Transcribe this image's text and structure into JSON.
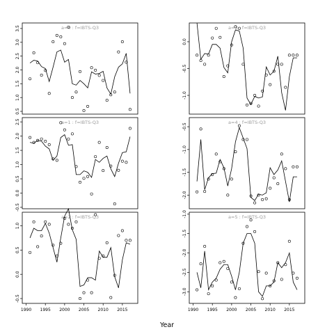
{
  "chart_data": {
    "type": "line",
    "xlabel": "Year",
    "xlim": [
      1989,
      2019
    ],
    "xticks": [
      1990,
      1995,
      2000,
      2005,
      2010,
      2015
    ],
    "panels": [
      {
        "id": "p1",
        "title": "a=0 : f=IBTS-Q3",
        "ylim": [
          0.4,
          3.7
        ],
        "yticks": [
          0.5,
          1.0,
          1.5,
          2.0,
          2.5,
          3.0,
          3.5
        ],
        "points_x": [
          1991,
          1992,
          1993,
          1994,
          1995,
          1996,
          1997,
          1998,
          1999,
          2000,
          2001,
          2002,
          2003,
          2004,
          2005,
          2006,
          2007,
          2008,
          2009,
          2010,
          2011,
          2012,
          2013,
          2014,
          2015,
          2016,
          2017
        ],
        "points_y": [
          1.68,
          2.62,
          2.26,
          1.81,
          1.98,
          1.15,
          3.02,
          3.25,
          3.2,
          2.95,
          3.55,
          1.0,
          1.2,
          1.94,
          0.53,
          0.68,
          2.08,
          1.99,
          1.8,
          1.62,
          0.9,
          1.1,
          1.2,
          2.65,
          3.02,
          2.28,
          0.57
        ],
        "fit_x": [
          1991,
          1992,
          1993,
          1994,
          1995,
          1996,
          1997,
          1998,
          1999,
          2000,
          2001,
          2002,
          2003,
          2004,
          2005,
          2006,
          2007,
          2008,
          2009,
          2010,
          2011,
          2012,
          2013,
          2014,
          2015,
          2016,
          2017
        ],
        "fit_y": [
          2.25,
          2.35,
          2.32,
          2.12,
          2.05,
          1.58,
          2.1,
          2.65,
          2.72,
          2.28,
          2.38,
          1.5,
          1.45,
          1.62,
          1.5,
          1.35,
          1.93,
          1.85,
          1.87,
          1.95,
          1.35,
          1.12,
          1.75,
          2.1,
          2.22,
          2.6,
          1.15
        ]
      },
      {
        "id": "p2",
        "title": "a=3 : f=IBTS-Q3",
        "ylim": [
          -1.35,
          0.35
        ],
        "yticks": [
          -1.0,
          -0.5,
          0.0
        ],
        "points_x": [
          1991,
          1992,
          1993,
          1994,
          1995,
          1996,
          1997,
          1998,
          1999,
          2000,
          2001,
          2002,
          2003,
          2004,
          2005,
          2006,
          2007,
          2008,
          2009,
          2010,
          2011,
          2012,
          2013,
          2014,
          2015,
          2016,
          2017
        ],
        "points_y": [
          -0.25,
          -0.35,
          -0.42,
          -0.25,
          0.07,
          0.25,
          0.08,
          -0.65,
          -0.45,
          -0.06,
          0.28,
          0.25,
          -0.42,
          -1.18,
          -1.15,
          -1.0,
          -1.2,
          -0.92,
          -0.62,
          -0.8,
          -0.55,
          -0.42,
          -0.42,
          -0.85,
          -0.25,
          -0.25,
          -0.25
        ],
        "fit_x": [
          1991,
          1992,
          1993,
          1994,
          1995,
          1996,
          1997,
          1998,
          1999,
          2000,
          2001,
          2002,
          2003,
          2004,
          2005,
          2006,
          2007,
          2008,
          2009,
          2010,
          2011,
          2012,
          2013,
          2014,
          2015,
          2016,
          2017
        ],
        "fit_y": [
          0.35,
          -0.33,
          -0.22,
          -0.23,
          -0.05,
          -0.05,
          -0.12,
          -0.48,
          -0.58,
          0.0,
          0.22,
          0.2,
          -0.12,
          -1.05,
          -1.17,
          -1.02,
          -1.05,
          -1.03,
          -0.47,
          -0.62,
          -0.55,
          -0.27,
          -0.95,
          -1.28,
          -0.65,
          -0.3,
          -0.3
        ]
      },
      {
        "id": "p3",
        "title": "a=1 : f=IBTS-Q3",
        "ylim": [
          -0.55,
          2.65
        ],
        "yticks": [
          -0.5,
          0.0,
          0.5,
          1.0,
          1.5,
          2.0,
          2.5
        ],
        "points_x": [
          1991,
          1992,
          1993,
          1994,
          1995,
          1996,
          1997,
          1998,
          1999,
          2000,
          2001,
          2002,
          2003,
          2004,
          2005,
          2006,
          2007,
          2008,
          2009,
          2010,
          2011,
          2012,
          2013,
          2014,
          2015,
          2016,
          2017
        ],
        "points_y": [
          1.95,
          1.78,
          1.85,
          1.9,
          1.82,
          1.7,
          1.2,
          1.15,
          2.47,
          2.22,
          1.9,
          2.08,
          0.93,
          0.38,
          0.52,
          0.58,
          -0.03,
          1.28,
          1.78,
          0.79,
          1.6,
          0.95,
          -0.38,
          0.8,
          1.12,
          1.08,
          2.27
        ],
        "fit_x": [
          1991,
          1992,
          1993,
          1994,
          1995,
          1996,
          1997,
          1998,
          1999,
          2000,
          2001,
          2002,
          2003,
          2004,
          2005,
          2006,
          2007,
          2008,
          2009,
          2010,
          2011,
          2012,
          2013,
          2014,
          2015,
          2016,
          2017
        ],
        "fit_y": [
          1.78,
          1.75,
          1.85,
          1.82,
          1.65,
          1.55,
          1.15,
          1.3,
          1.95,
          2.05,
          1.68,
          1.7,
          0.65,
          0.65,
          0.78,
          0.73,
          0.55,
          1.18,
          1.08,
          1.22,
          1.3,
          0.85,
          0.58,
          1.05,
          1.42,
          1.45,
          1.98
        ]
      },
      {
        "id": "p4",
        "title": "a=4 : f=IBTS-Q3",
        "ylim": [
          -2.3,
          -0.3
        ],
        "yticks": [
          -2.0,
          -1.5,
          -1.0,
          -0.5
        ],
        "points_x": [
          1991,
          1992,
          1993,
          1994,
          1995,
          1996,
          1997,
          1998,
          1999,
          2000,
          2001,
          2002,
          2003,
          2004,
          2005,
          2006,
          2007,
          2008,
          2009,
          2010,
          2011,
          2012,
          2013,
          2014,
          2015,
          2016,
          2017
        ],
        "points_y": [
          -1.93,
          -0.55,
          -1.92,
          -1.65,
          -1.55,
          -1.1,
          -1.27,
          -1.42,
          -2.0,
          -1.65,
          -1.05,
          -0.48,
          -0.78,
          -0.78,
          -2.02,
          -2.17,
          -2.0,
          -2.1,
          -2.08,
          -1.85,
          -1.62,
          -1.75,
          -1.1,
          -1.42,
          -2.1,
          -1.38,
          -1.38
        ],
        "fit_x": [
          1991,
          1992,
          1993,
          1994,
          1995,
          1996,
          1997,
          1998,
          1999,
          2000,
          2001,
          2002,
          2003,
          2004,
          2005,
          2006,
          2007,
          2008,
          2009,
          2010,
          2011,
          2012,
          2013,
          2014,
          2015,
          2016,
          2017
        ],
        "fit_y": [
          -1.7,
          -0.78,
          -1.88,
          -1.62,
          -1.53,
          -1.52,
          -1.22,
          -1.4,
          -1.8,
          -1.42,
          -0.83,
          -0.52,
          -0.75,
          -0.98,
          -2.05,
          -2.12,
          -1.98,
          -2.0,
          -1.95,
          -1.4,
          -1.55,
          -1.45,
          -1.25,
          -1.7,
          -2.15,
          -1.6,
          -1.6
        ]
      },
      {
        "id": "p5",
        "title": "a=2 : f=IBTS-Q3",
        "ylim": [
          -0.6,
          1.28
        ],
        "yticks": [
          -0.5,
          0.0,
          0.5,
          1.0
        ],
        "points_x": [
          1991,
          1992,
          1993,
          1994,
          1995,
          1996,
          1997,
          1998,
          1999,
          2000,
          2001,
          2002,
          2003,
          2004,
          2005,
          2006,
          2007,
          2008,
          2009,
          2010,
          2011,
          2012,
          2013,
          2014,
          2015,
          2016,
          2017
        ],
        "points_y": [
          0.45,
          1.08,
          0.57,
          0.79,
          1.08,
          1.03,
          0.6,
          0.38,
          0.64,
          1.15,
          1.03,
          0.95,
          1.08,
          -0.5,
          -0.38,
          -0.12,
          -0.38,
          1.23,
          0.33,
          0.38,
          0.65,
          -0.48,
          -0.02,
          0.8,
          0.9,
          0.7,
          0.7
        ],
        "fit_x": [
          1991,
          1992,
          1993,
          1994,
          1995,
          1996,
          1997,
          1998,
          1999,
          2000,
          2001,
          2002,
          2003,
          2004,
          2005,
          2006,
          2007,
          2008,
          2009,
          2010,
          2011,
          2012,
          2013,
          2014,
          2015,
          2016,
          2017
        ],
        "fit_y": [
          0.75,
          0.95,
          0.9,
          0.9,
          1.05,
          0.85,
          0.55,
          0.25,
          0.75,
          1.2,
          1.35,
          0.92,
          0.72,
          -0.25,
          -0.22,
          -0.07,
          -0.07,
          -0.12,
          0.48,
          0.35,
          0.35,
          0.55,
          -0.05,
          -0.28,
          0.3,
          0.65,
          0.62
        ]
      },
      {
        "id": "p6",
        "title": "a=5 : f=IBTS-Q3",
        "ylim": [
          -3.3,
          -0.95
        ],
        "yticks": [
          -3.0,
          -2.5,
          -2.0,
          -1.5,
          -1.0
        ],
        "points_x": [
          1991,
          1992,
          1993,
          1994,
          1995,
          1996,
          1997,
          1998,
          1999,
          2000,
          2001,
          2002,
          2003,
          2004,
          2005,
          2006,
          2007,
          2008,
          2009,
          2010,
          2011,
          2012,
          2013,
          2014,
          2015,
          2016,
          2017
        ],
        "points_y": [
          -2.95,
          -2.28,
          -1.83,
          -3.05,
          -2.85,
          -2.7,
          -2.25,
          -2.22,
          -2.4,
          -2.75,
          -3.15,
          -2.92,
          -1.75,
          -1.32,
          -1.15,
          -1.45,
          -2.48,
          -3.18,
          -2.52,
          -2.85,
          -2.72,
          -2.25,
          -2.68,
          -2.3,
          -1.7,
          -2.52,
          -2.65
        ],
        "fit_x": [
          1991,
          1992,
          1993,
          1994,
          1995,
          1996,
          1997,
          1998,
          1999,
          2000,
          2001,
          2002,
          2003,
          2004,
          2005,
          2006,
          2007,
          2008,
          2009,
          2010,
          2011,
          2012,
          2013,
          2014,
          2015,
          2016,
          2017
        ],
        "fit_y": [
          -2.5,
          -2.9,
          -1.95,
          -2.95,
          -2.75,
          -2.65,
          -2.42,
          -2.3,
          -2.3,
          -2.6,
          -2.95,
          -2.5,
          -1.75,
          -1.5,
          -1.5,
          -1.75,
          -3.0,
          -3.12,
          -2.85,
          -2.85,
          -2.75,
          -2.25,
          -2.38,
          -2.25,
          -2.0,
          -2.75,
          -2.95
        ]
      }
    ]
  }
}
